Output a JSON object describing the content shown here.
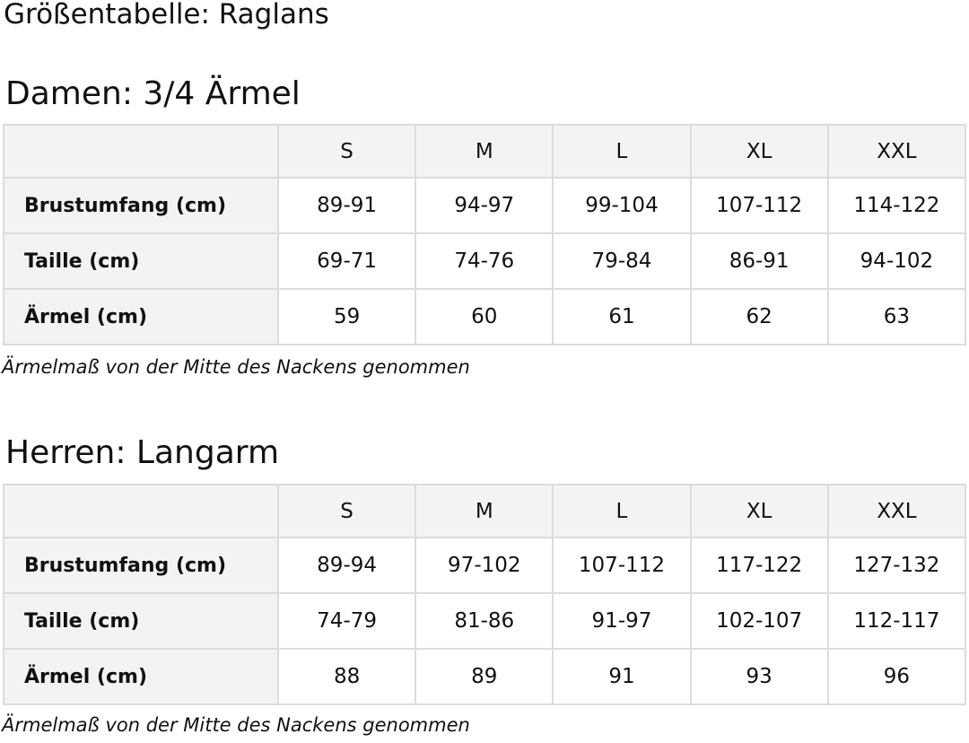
{
  "title": "Größentabelle: Raglans",
  "tables": [
    {
      "heading": "Damen: 3/4 Ärmel",
      "sizes": [
        "S",
        "M",
        "L",
        "XL",
        "XXL"
      ],
      "rows": [
        {
          "label": "Brustumfang (cm)",
          "values": [
            "89-91",
            "94-97",
            "99-104",
            "107-112",
            "114-122"
          ]
        },
        {
          "label": "Taille (cm)",
          "values": [
            "69-71",
            "74-76",
            "79-84",
            "86-91",
            "94-102"
          ]
        },
        {
          "label": "Ärmel (cm)",
          "values": [
            "59",
            "60",
            "61",
            "62",
            "63"
          ]
        }
      ],
      "note": "Ärmelmaß von der Mitte des Nackens genommen"
    },
    {
      "heading": "Herren: Langarm",
      "sizes": [
        "S",
        "M",
        "L",
        "XL",
        "XXL"
      ],
      "rows": [
        {
          "label": "Brustumfang (cm)",
          "values": [
            "89-94",
            "97-102",
            "107-112",
            "117-122",
            "127-132"
          ]
        },
        {
          "label": "Taille (cm)",
          "values": [
            "74-79",
            "81-86",
            "91-97",
            "102-107",
            "112-117"
          ]
        },
        {
          "label": "Ärmel (cm)",
          "values": [
            "88",
            "89",
            "91",
            "93",
            "96"
          ]
        }
      ],
      "note": "Ärmelmaß von der Mitte des Nackens genommen"
    }
  ]
}
